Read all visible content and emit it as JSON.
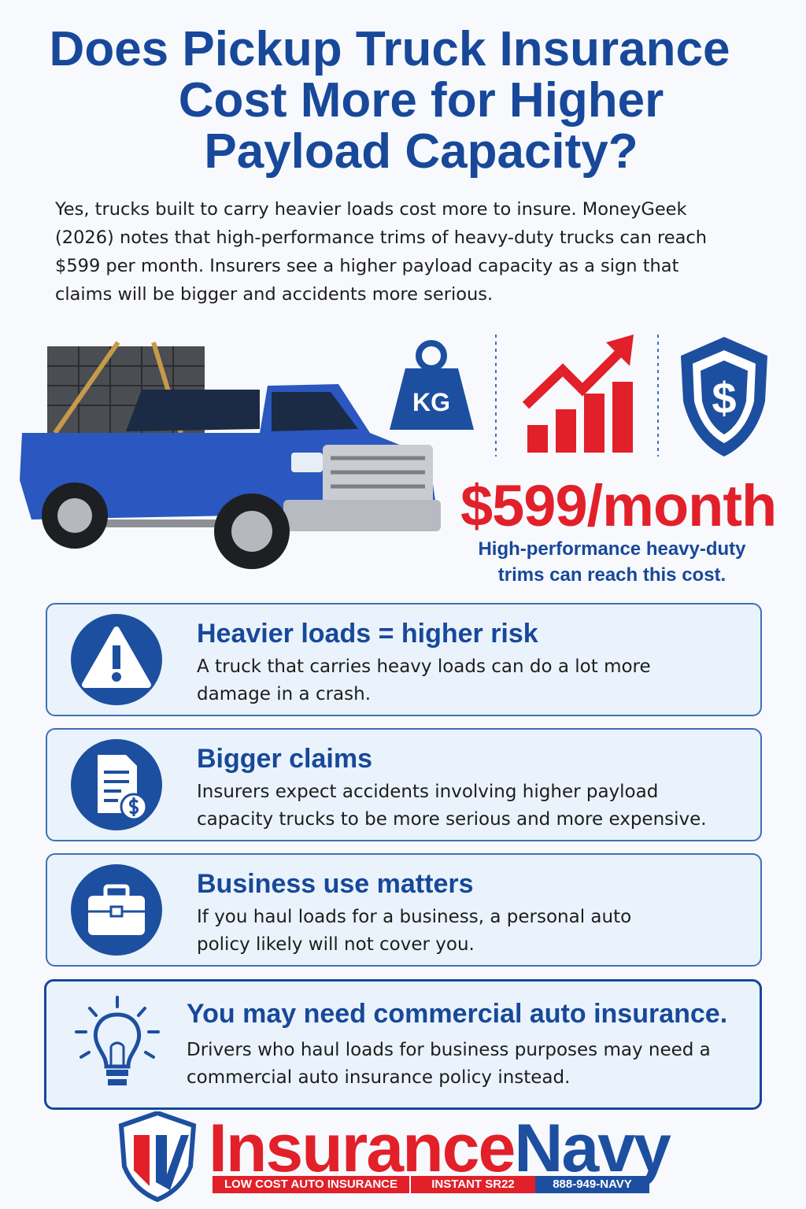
{
  "header": {
    "title_lines": [
      "Does Pickup Truck Insurance",
      "Cost More for Higher",
      "Payload Capacity?"
    ],
    "intro": "Yes, trucks built to carry heavier loads cost more to insure. MoneyGeek (2026) notes that high-performance trims of heavy-duty trucks can reach $599 per month. Insurers see a higher payload capacity as a sign that claims will be bigger and accidents more serious."
  },
  "hero": {
    "weight_label": "KG",
    "shield_symbol": "$",
    "price": "$599/month",
    "price_note_lines": [
      "High-performance heavy-duty",
      "trims can reach this cost."
    ]
  },
  "cards": [
    {
      "title": "Heavier loads = higher risk",
      "body": "A truck that carries heavy loads can do a lot more damage in a crash."
    },
    {
      "title": "Bigger claims",
      "body": "Insurers expect accidents involving higher payload capacity trucks to be more serious and more expensive."
    },
    {
      "title": "Business use matters",
      "body": "If you haul loads for a business, a personal auto policy likely will not cover you."
    },
    {
      "title": "You may need commercial auto insurance.",
      "body": "Drivers who haul loads for business purposes may need a commercial auto insurance policy instead."
    }
  ],
  "footer": {
    "brand_first": "Insurance",
    "brand_second": "Navy",
    "tagline_parts": [
      "LOW COST AUTO INSURANCE",
      "INSTANT SR22"
    ],
    "phone": "888-949-NAVY"
  }
}
